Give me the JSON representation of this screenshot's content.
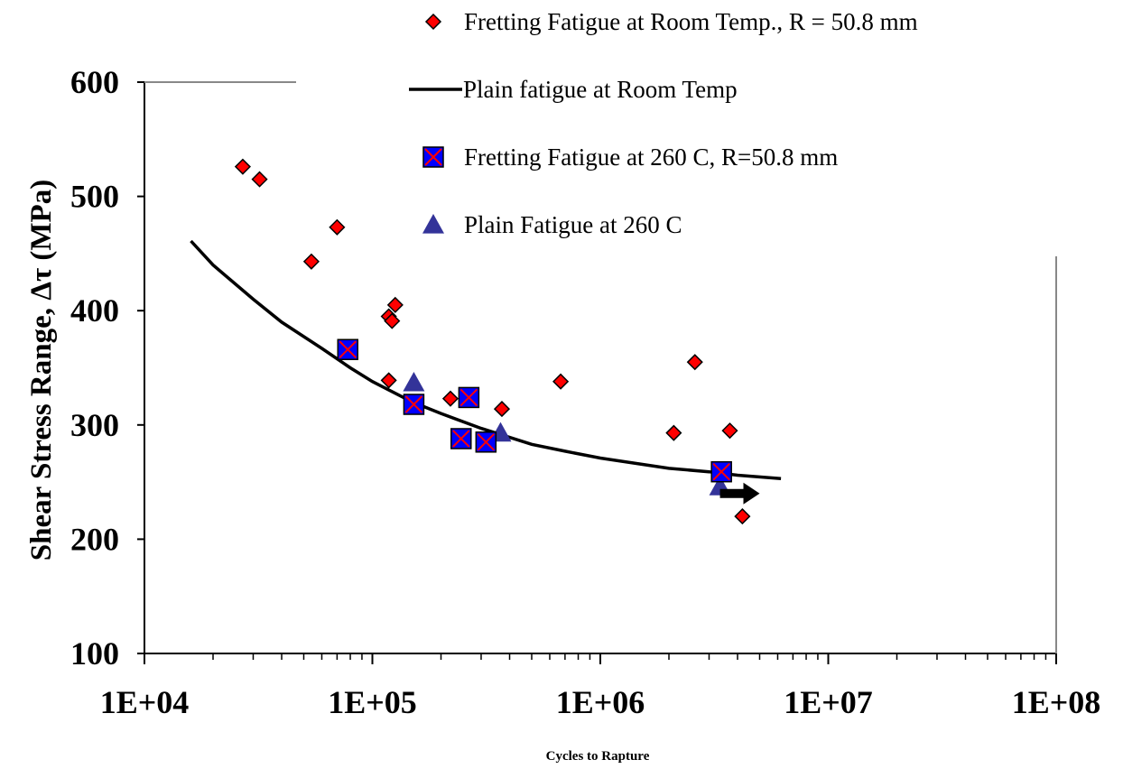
{
  "chart_data": {
    "type": "scatter",
    "title": "",
    "xlabel": "Cycles to Rapture",
    "ylabel": "Shear Stress Range, Δτ (MPa)",
    "xscale": "log",
    "xlim": [
      10000,
      100000000
    ],
    "ylim": [
      100,
      600
    ],
    "x_tick_labels": [
      "1E+04",
      "1E+05",
      "1E+06",
      "1E+07",
      "1E+08"
    ],
    "y_tick_labels": [
      "100",
      "200",
      "300",
      "400",
      "500",
      "600"
    ],
    "legend_placement": "top-right",
    "series": [
      {
        "name": "Fretting Fatigue at Room Temp., R = 50.8 mm",
        "kind": "scatter",
        "marker": "diamond",
        "color": "#ff0000",
        "points": [
          [
            27000,
            526
          ],
          [
            32000,
            515
          ],
          [
            54000,
            443
          ],
          [
            70000,
            473
          ],
          [
            118000,
            395
          ],
          [
            122000,
            391
          ],
          [
            126000,
            405
          ],
          [
            118000,
            339
          ],
          [
            220000,
            323
          ],
          [
            370000,
            314
          ],
          [
            670000,
            338
          ],
          [
            2100000,
            293
          ],
          [
            2600000,
            355
          ],
          [
            3700000,
            295
          ],
          [
            4200000,
            220
          ]
        ]
      },
      {
        "name": "Plain fatigue at Room Temp",
        "kind": "line",
        "color": "#000000",
        "points": [
          [
            16000,
            461
          ],
          [
            20000,
            440
          ],
          [
            30000,
            410
          ],
          [
            40000,
            390
          ],
          [
            60000,
            367
          ],
          [
            80000,
            350
          ],
          [
            100000,
            338
          ],
          [
            150000,
            320
          ],
          [
            200000,
            310
          ],
          [
            300000,
            297
          ],
          [
            500000,
            283
          ],
          [
            700000,
            277
          ],
          [
            1000000,
            271
          ],
          [
            2000000,
            262
          ],
          [
            3000000,
            259
          ],
          [
            4000000,
            256
          ],
          [
            6200000,
            253
          ]
        ]
      },
      {
        "name": "Fretting Fatigue at 260 C, R=50.8 mm",
        "kind": "scatter",
        "marker": "square-x",
        "color": "#0000ff",
        "points": [
          [
            78000,
            366
          ],
          [
            152000,
            318
          ],
          [
            245000,
            288
          ],
          [
            265000,
            324
          ],
          [
            315000,
            285
          ],
          [
            3400000,
            259
          ]
        ]
      },
      {
        "name": "Plain Fatigue at 260 C",
        "kind": "scatter",
        "marker": "triangle",
        "color": "#333399",
        "points": [
          [
            152000,
            337
          ],
          [
            365000,
            293
          ],
          [
            3350000,
            246
          ]
        ]
      }
    ],
    "annotations": [
      {
        "kind": "arrow",
        "direction": "right",
        "color": "#000000",
        "x_from": 3350000,
        "x_to": 5000000,
        "y": 240
      }
    ]
  }
}
